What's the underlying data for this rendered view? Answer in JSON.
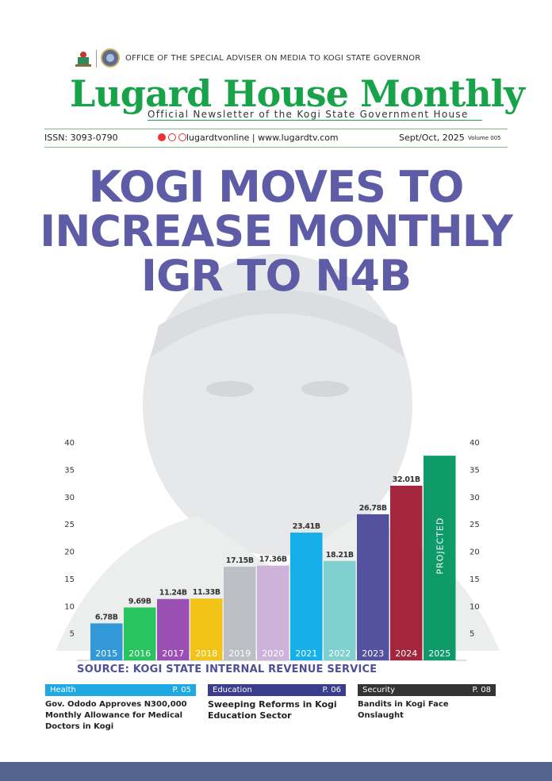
{
  "header": {
    "office": "OFFICE OF THE SPECIAL ADVISER ON MEDIA TO KOGI STATE GOVERNOR",
    "masthead": "Lugard House Monthly",
    "subtitle": "Official Newsletter of the Kogi State Government House",
    "issn": "ISSN: 3093-0790",
    "web": "lugardtvonline | www.lugardtv.com",
    "date": "Sept/Oct, 2025",
    "volume": "Volume 005"
  },
  "headline": {
    "line1": "KOGI MOVES TO",
    "line2": "INCREASE MONTHLY",
    "line3": "IGR TO N4B"
  },
  "chart_data": {
    "type": "bar",
    "categories": [
      "2015",
      "2016",
      "2017",
      "2018",
      "2019",
      "2020",
      "2021",
      "2022",
      "2023",
      "2024",
      "2025"
    ],
    "values": [
      6.78,
      9.69,
      11.24,
      11.33,
      17.15,
      17.36,
      23.41,
      18.21,
      26.78,
      32.01,
      null
    ],
    "data_labels": [
      "6.78B",
      "9.69B",
      "11.24B",
      "11.33B",
      "17.15B",
      "17.36B",
      "23.41B",
      "18.21B",
      "26.78B",
      "32.01B",
      ""
    ],
    "projected_label": "PROJECTED",
    "projected_year": "2025",
    "yticks": [
      5,
      10,
      15,
      20,
      25,
      30,
      35,
      40
    ],
    "ylim": [
      0,
      40
    ],
    "colors": [
      "#3398d8",
      "#27c45f",
      "#9b4fb5",
      "#f2c417",
      "#bdbfc4",
      "#cdb3d9",
      "#15b0ea",
      "#7fd0cf",
      "#54529e",
      "#a3263e",
      "#0f9a6a"
    ],
    "source": "SOURCE: KOGI STATE INTERNAL REVENUE SERVICE"
  },
  "teasers": [
    {
      "category": "Health",
      "page": "P. 05",
      "title": "Gov. Ododo Approves N300,000 Monthly Allowance for Medical Doctors in Kogi",
      "color": "#1fa9e3"
    },
    {
      "category": "Education",
      "page": "P. 06",
      "title": "Sweeping Reforms in Kogi Education Sector",
      "color": "#3a3d8c"
    },
    {
      "category": "Security",
      "page": "P. 08",
      "title": "Bandits in Kogi Face Onslaught",
      "color": "#333333"
    }
  ]
}
